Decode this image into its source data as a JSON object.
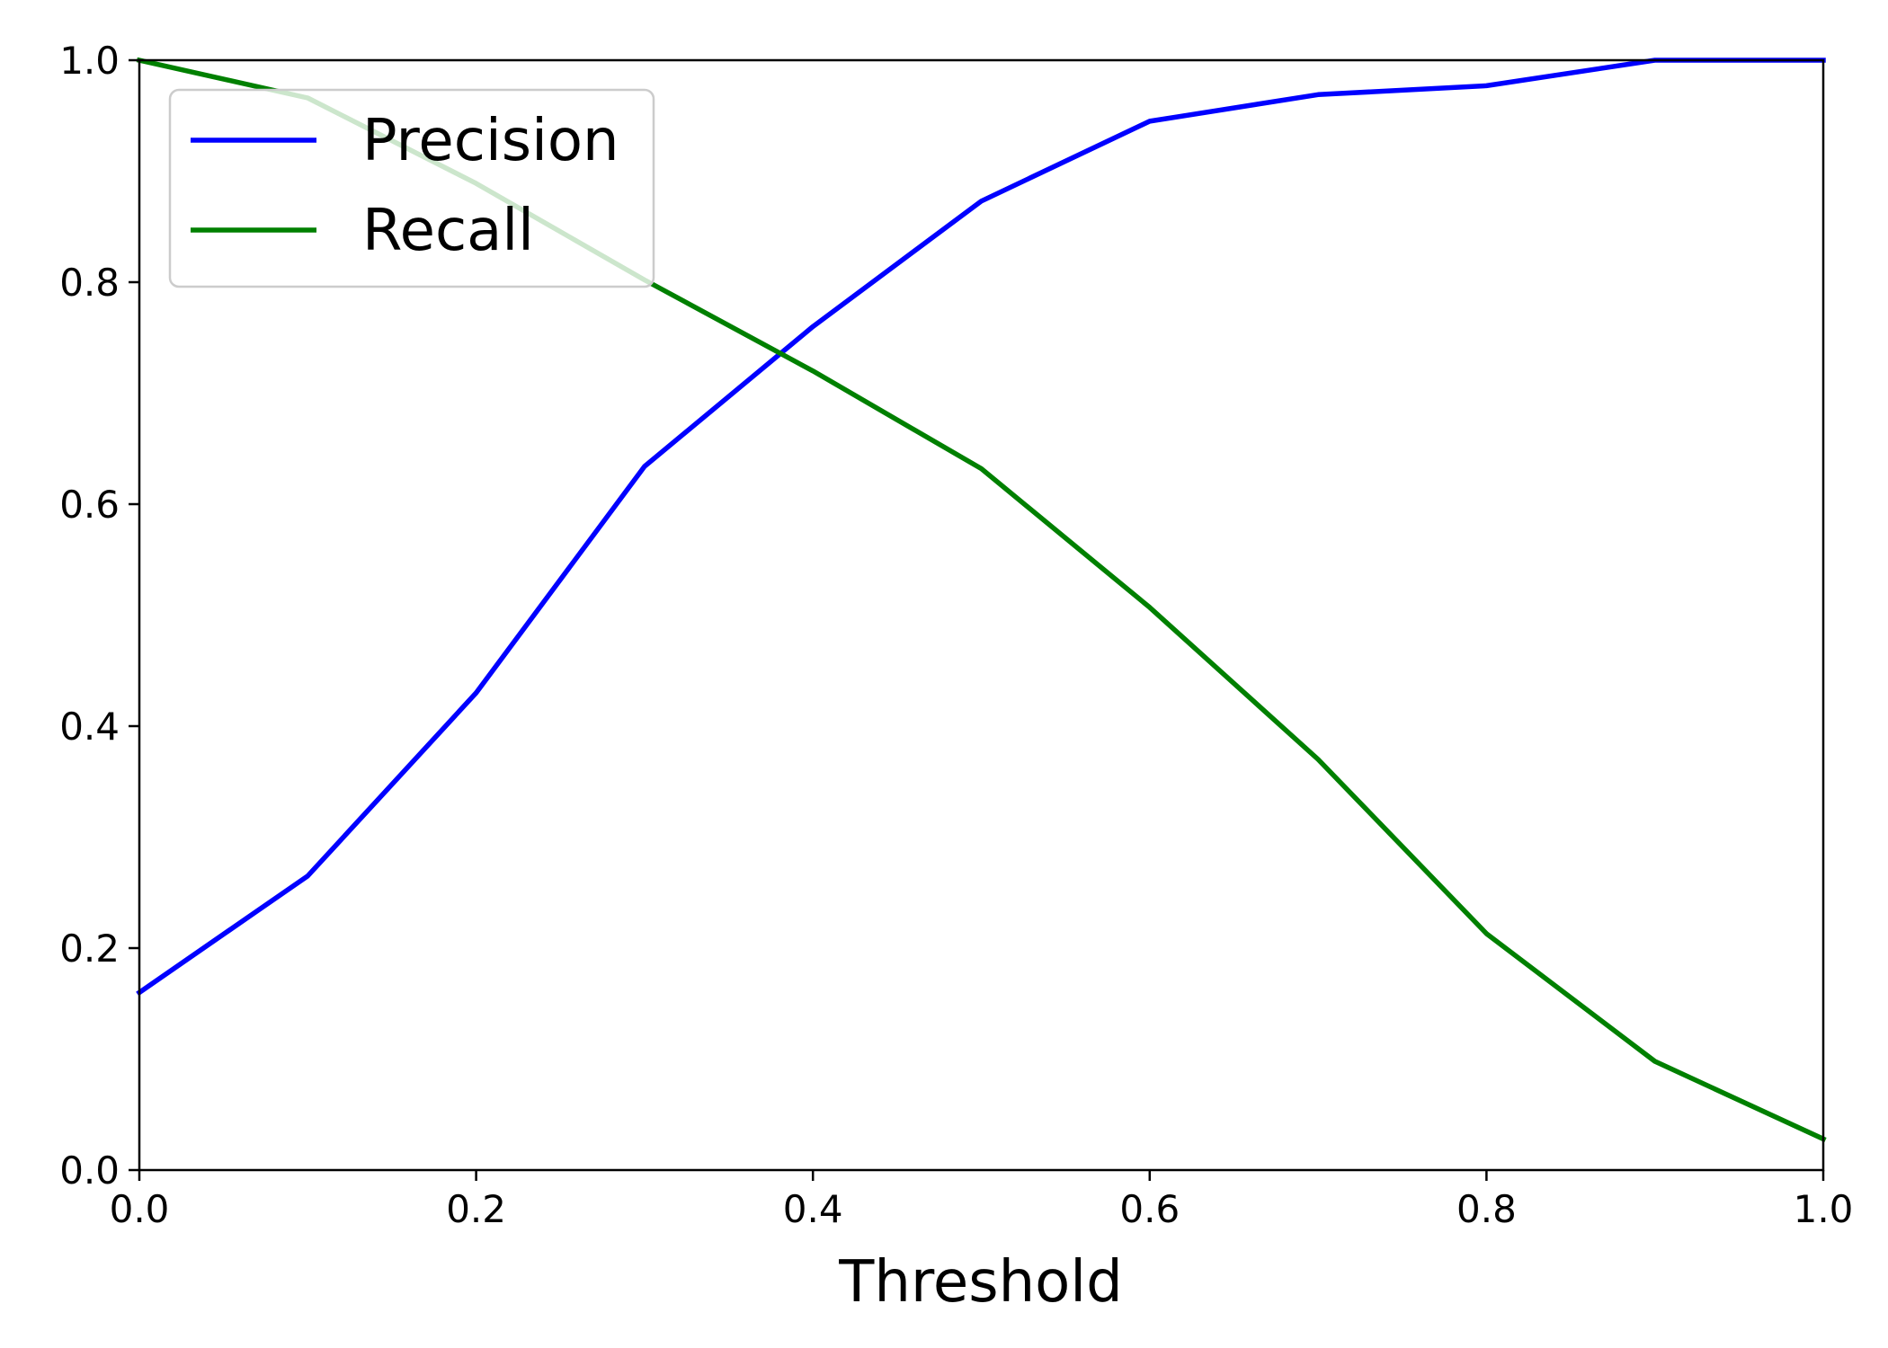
{
  "chart_data": {
    "type": "line",
    "title": "",
    "xlabel": "Threshold",
    "ylabel": "",
    "xlim": [
      0.0,
      1.0
    ],
    "ylim": [
      0.0,
      1.0
    ],
    "x_ticks": [
      "0.0",
      "0.2",
      "0.4",
      "0.6",
      "0.8",
      "1.0"
    ],
    "y_ticks": [
      "0.0",
      "0.2",
      "0.4",
      "0.6",
      "0.8",
      "1.0"
    ],
    "grid": false,
    "legend_position": "upper-left",
    "x": [
      0.0,
      0.1,
      0.2,
      0.3,
      0.4,
      0.5,
      0.6,
      0.7,
      0.8,
      0.9,
      1.0
    ],
    "series": [
      {
        "name": "Precision",
        "color": "#0000ff",
        "values": [
          0.16,
          0.265,
          0.43,
          0.634,
          0.76,
          0.873,
          0.945,
          0.969,
          0.977,
          1.0,
          1.0
        ]
      },
      {
        "name": "Recall",
        "color": "#008000",
        "values": [
          1.0,
          0.966,
          0.889,
          0.802,
          0.72,
          0.632,
          0.507,
          0.37,
          0.213,
          0.098,
          0.028
        ]
      }
    ]
  }
}
